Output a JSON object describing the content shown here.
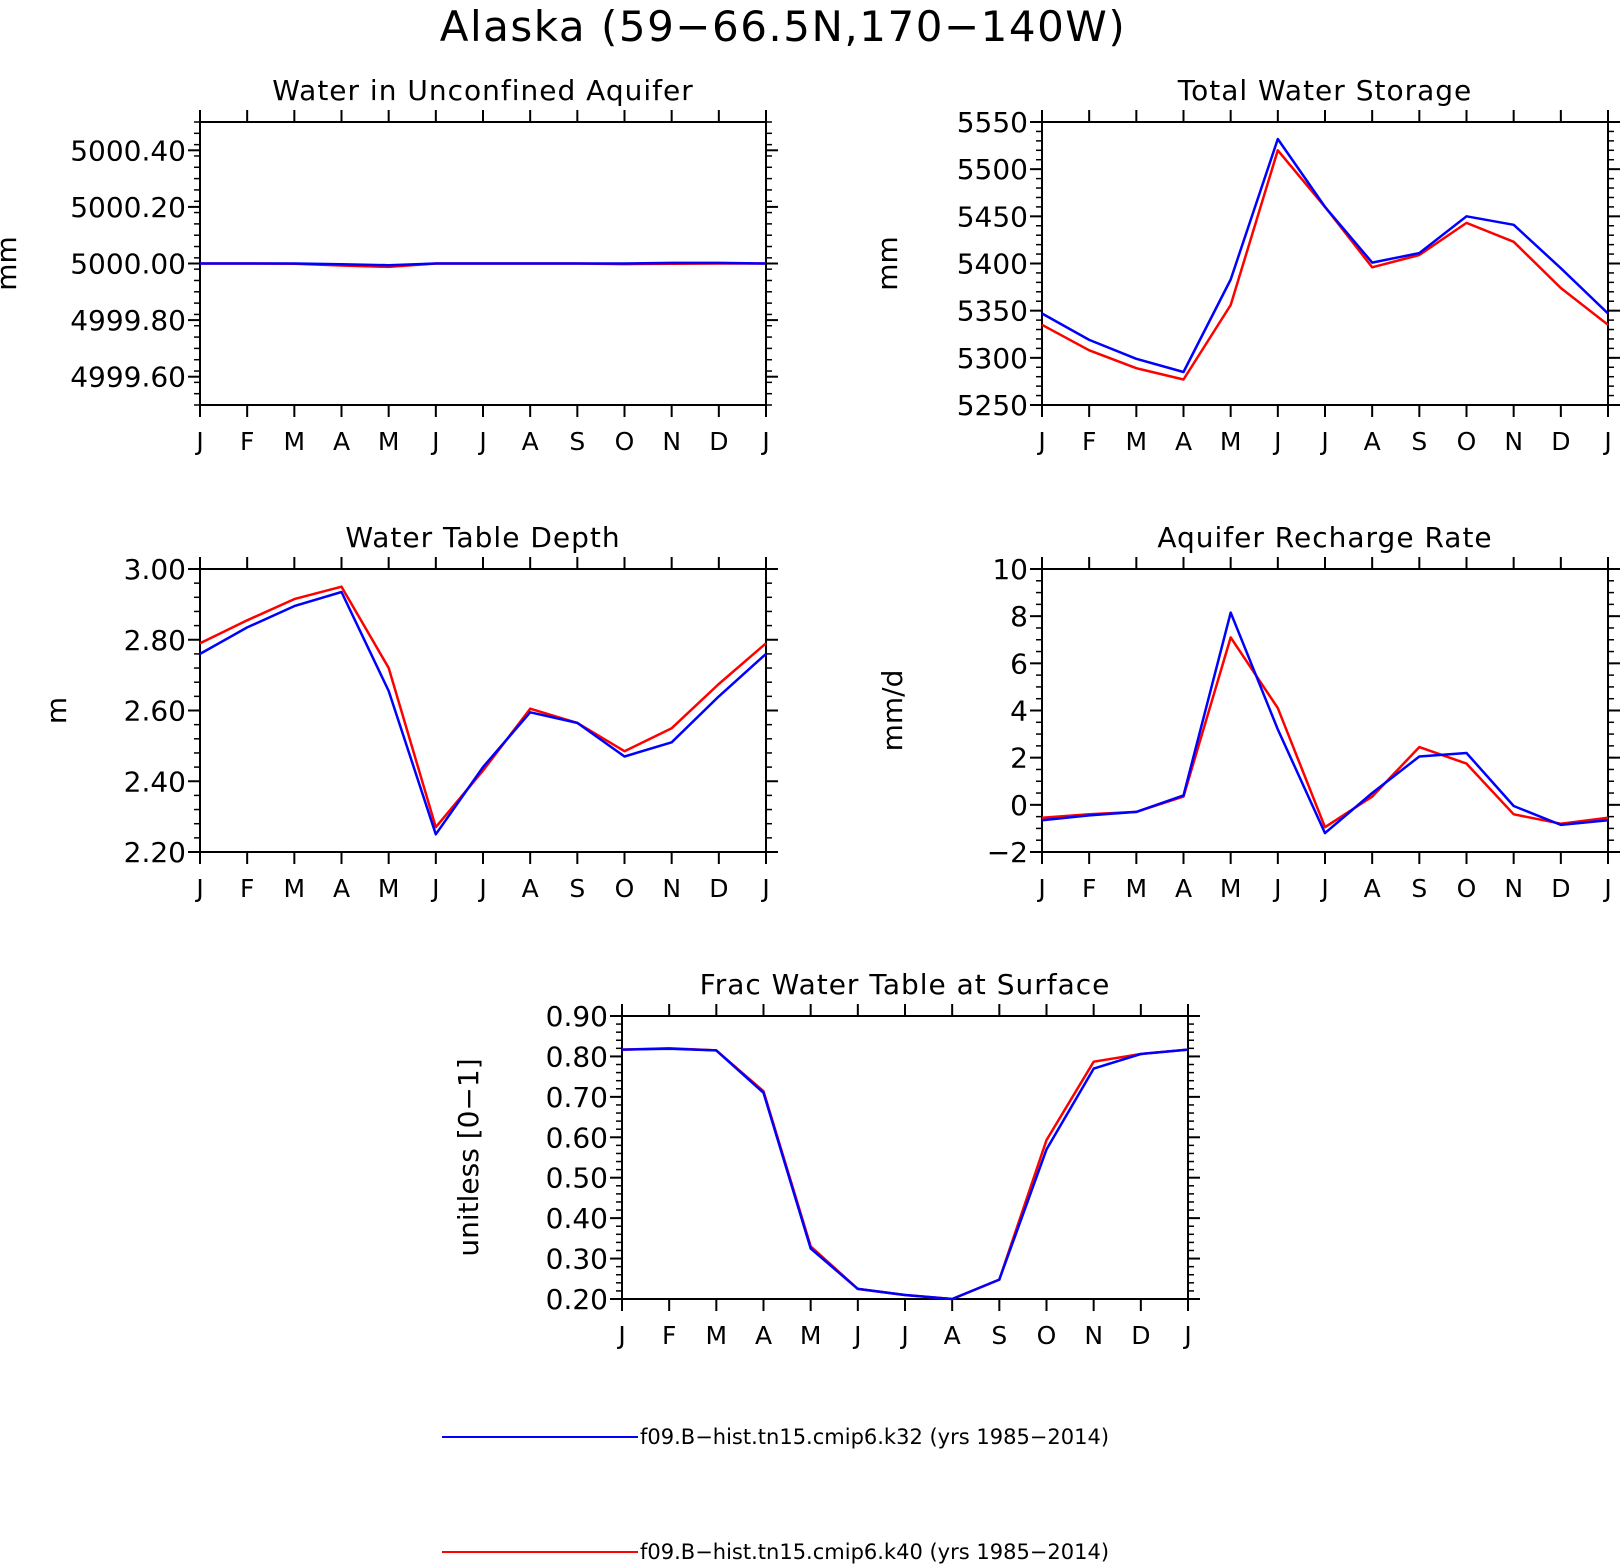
{
  "figure": {
    "title": "Alaska (59−66.5N,170−140W)",
    "x_tick_labels": [
      "J",
      "F",
      "M",
      "A",
      "M",
      "J",
      "J",
      "A",
      "S",
      "O",
      "N",
      "D",
      "J"
    ]
  },
  "legend": [
    {
      "label": "f09.B−hist.tn15.cmip6.k32 (yrs 1985−2014)",
      "color": "#0000ff"
    },
    {
      "label": "f09.B−hist.tn15.cmip6.k40 (yrs 1985−2014)",
      "color": "#ff0000"
    }
  ],
  "chart_data": [
    {
      "id": "water-unconfined-aquifer",
      "type": "line",
      "title": "Water in Unconfined Aquifer",
      "ylabel": "mm",
      "ylim": [
        4999.5,
        5000.5
      ],
      "yticks": [
        4999.6,
        4999.8,
        5000.0,
        5000.2,
        5000.4
      ],
      "ytick_labels": [
        "4999.60",
        "4999.80",
        "5000.00",
        "5000.20",
        "5000.40"
      ],
      "yminor_step": 0.04,
      "x": [
        0,
        1,
        2,
        3,
        4,
        5,
        6,
        7,
        8,
        9,
        10,
        11,
        12
      ],
      "series": [
        {
          "color": "#ff0000",
          "values": [
            5000.0,
            5000.0,
            4999.999,
            4999.993,
            4999.988,
            5000.0,
            5000.0,
            5000.0,
            5000.0,
            4999.998,
            4999.999,
            5000.0,
            5000.0
          ]
        },
        {
          "color": "#0000ff",
          "values": [
            5000.0,
            5000.0,
            5000.0,
            4999.997,
            4999.994,
            5000.0,
            5000.0,
            5000.0,
            5000.0,
            5000.0,
            5000.002,
            5000.002,
            5000.0
          ]
        }
      ]
    },
    {
      "id": "total-water-storage",
      "type": "line",
      "title": "Total Water Storage",
      "ylabel": "mm",
      "ylim": [
        5250,
        5550
      ],
      "yticks": [
        5250,
        5300,
        5350,
        5400,
        5450,
        5500,
        5550
      ],
      "ytick_labels": [
        "5250",
        "5300",
        "5350",
        "5400",
        "5450",
        "5500",
        "5550"
      ],
      "yminor_step": 10,
      "x": [
        0,
        1,
        2,
        3,
        4,
        5,
        6,
        7,
        8,
        9,
        10,
        11,
        12
      ],
      "series": [
        {
          "color": "#ff0000",
          "values": [
            5335,
            5308,
            5289,
            5277,
            5356,
            5520,
            5460,
            5396,
            5409,
            5443,
            5423,
            5374,
            5335
          ]
        },
        {
          "color": "#0000ff",
          "values": [
            5347,
            5319,
            5299,
            5285,
            5383,
            5532,
            5460,
            5401,
            5411,
            5450,
            5441,
            5395,
            5347
          ]
        }
      ]
    },
    {
      "id": "water-table-depth",
      "type": "line",
      "title": "Water Table Depth",
      "ylabel": "m",
      "ylim": [
        2.2,
        3.0
      ],
      "yticks": [
        2.2,
        2.4,
        2.6,
        2.8,
        3.0
      ],
      "ytick_labels": [
        "2.20",
        "2.40",
        "2.60",
        "2.80",
        "3.00"
      ],
      "yminor_step": 0.04,
      "x": [
        0,
        1,
        2,
        3,
        4,
        5,
        6,
        7,
        8,
        9,
        10,
        11,
        12
      ],
      "series": [
        {
          "color": "#ff0000",
          "values": [
            2.79,
            2.855,
            2.915,
            2.95,
            2.72,
            2.27,
            2.43,
            2.605,
            2.565,
            2.485,
            2.55,
            2.675,
            2.79
          ]
        },
        {
          "color": "#0000ff",
          "values": [
            2.76,
            2.835,
            2.895,
            2.935,
            2.655,
            2.25,
            2.44,
            2.595,
            2.565,
            2.47,
            2.51,
            2.64,
            2.76
          ]
        }
      ]
    },
    {
      "id": "aquifer-recharge-rate",
      "type": "line",
      "title": "Aquifer Recharge Rate",
      "ylabel": "mm/d",
      "ylim": [
        -2,
        10
      ],
      "yticks": [
        -2,
        0,
        2,
        4,
        6,
        8,
        10
      ],
      "ytick_labels": [
        "−2",
        "0",
        "2",
        "4",
        "6",
        "8",
        "10"
      ],
      "yminor_step": 0.5,
      "x": [
        0,
        1,
        2,
        3,
        4,
        5,
        6,
        7,
        8,
        9,
        10,
        11,
        12
      ],
      "series": [
        {
          "color": "#ff0000",
          "values": [
            -0.55,
            -0.4,
            -0.3,
            0.35,
            7.1,
            4.1,
            -0.95,
            0.35,
            2.45,
            1.75,
            -0.4,
            -0.8,
            -0.55
          ]
        },
        {
          "color": "#0000ff",
          "values": [
            -0.65,
            -0.45,
            -0.3,
            0.4,
            8.15,
            3.2,
            -1.2,
            0.5,
            2.05,
            2.2,
            -0.05,
            -0.85,
            -0.65
          ]
        }
      ]
    },
    {
      "id": "frac-water-table-surface",
      "type": "line",
      "title": "Frac Water Table at Surface",
      "ylabel": "unitless [0−1]",
      "ylim": [
        0.2,
        0.9
      ],
      "yticks": [
        0.2,
        0.3,
        0.4,
        0.5,
        0.6,
        0.7,
        0.8,
        0.9
      ],
      "ytick_labels": [
        "0.20",
        "0.30",
        "0.40",
        "0.50",
        "0.60",
        "0.70",
        "0.80",
        "0.90"
      ],
      "yminor_step": 0.02,
      "x": [
        0,
        1,
        2,
        3,
        4,
        5,
        6,
        7,
        8,
        9,
        10,
        11,
        12
      ],
      "series": [
        {
          "color": "#ff0000",
          "values": [
            0.817,
            0.82,
            0.815,
            0.714,
            0.33,
            0.225,
            0.21,
            0.2,
            0.248,
            0.593,
            0.787,
            0.806,
            0.817
          ]
        },
        {
          "color": "#0000ff",
          "values": [
            0.817,
            0.819,
            0.815,
            0.71,
            0.325,
            0.225,
            0.21,
            0.2,
            0.248,
            0.57,
            0.77,
            0.806,
            0.817
          ]
        }
      ]
    }
  ]
}
